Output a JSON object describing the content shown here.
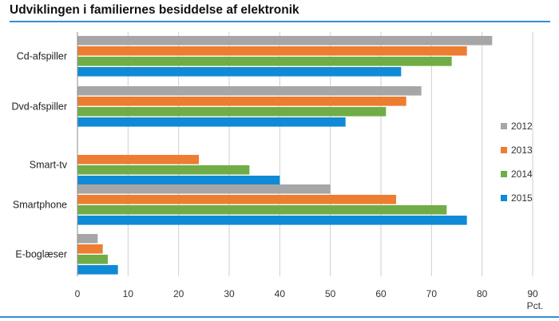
{
  "title": "Udviklingen i familiernes besiddelse af elektronik",
  "chart_data": {
    "type": "bar",
    "orientation": "horizontal",
    "title": "Udviklingen i familiernes besiddelse af elektronik",
    "xlabel": "Pct.",
    "ylabel": "",
    "xlim": [
      0,
      90
    ],
    "x_ticks": [
      0,
      10,
      20,
      30,
      40,
      50,
      60,
      70,
      80,
      90
    ],
    "grid": "vertical",
    "legend": "right",
    "categories": [
      "Cd-afspiller",
      "Dvd-afspiller",
      "Smart-tv",
      "Smartphone",
      "E-boglæser"
    ],
    "series": [
      {
        "name": "2012",
        "color": "#a6a6a6",
        "values": [
          82,
          68,
          null,
          50,
          4
        ]
      },
      {
        "name": "2013",
        "color": "#ed7d31",
        "values": [
          77,
          65,
          24,
          63,
          5
        ]
      },
      {
        "name": "2014",
        "color": "#70ad47",
        "values": [
          74,
          61,
          34,
          73,
          6
        ]
      },
      {
        "name": "2015",
        "color": "#0f8ad6",
        "values": [
          64,
          53,
          40,
          77,
          8
        ]
      }
    ]
  }
}
